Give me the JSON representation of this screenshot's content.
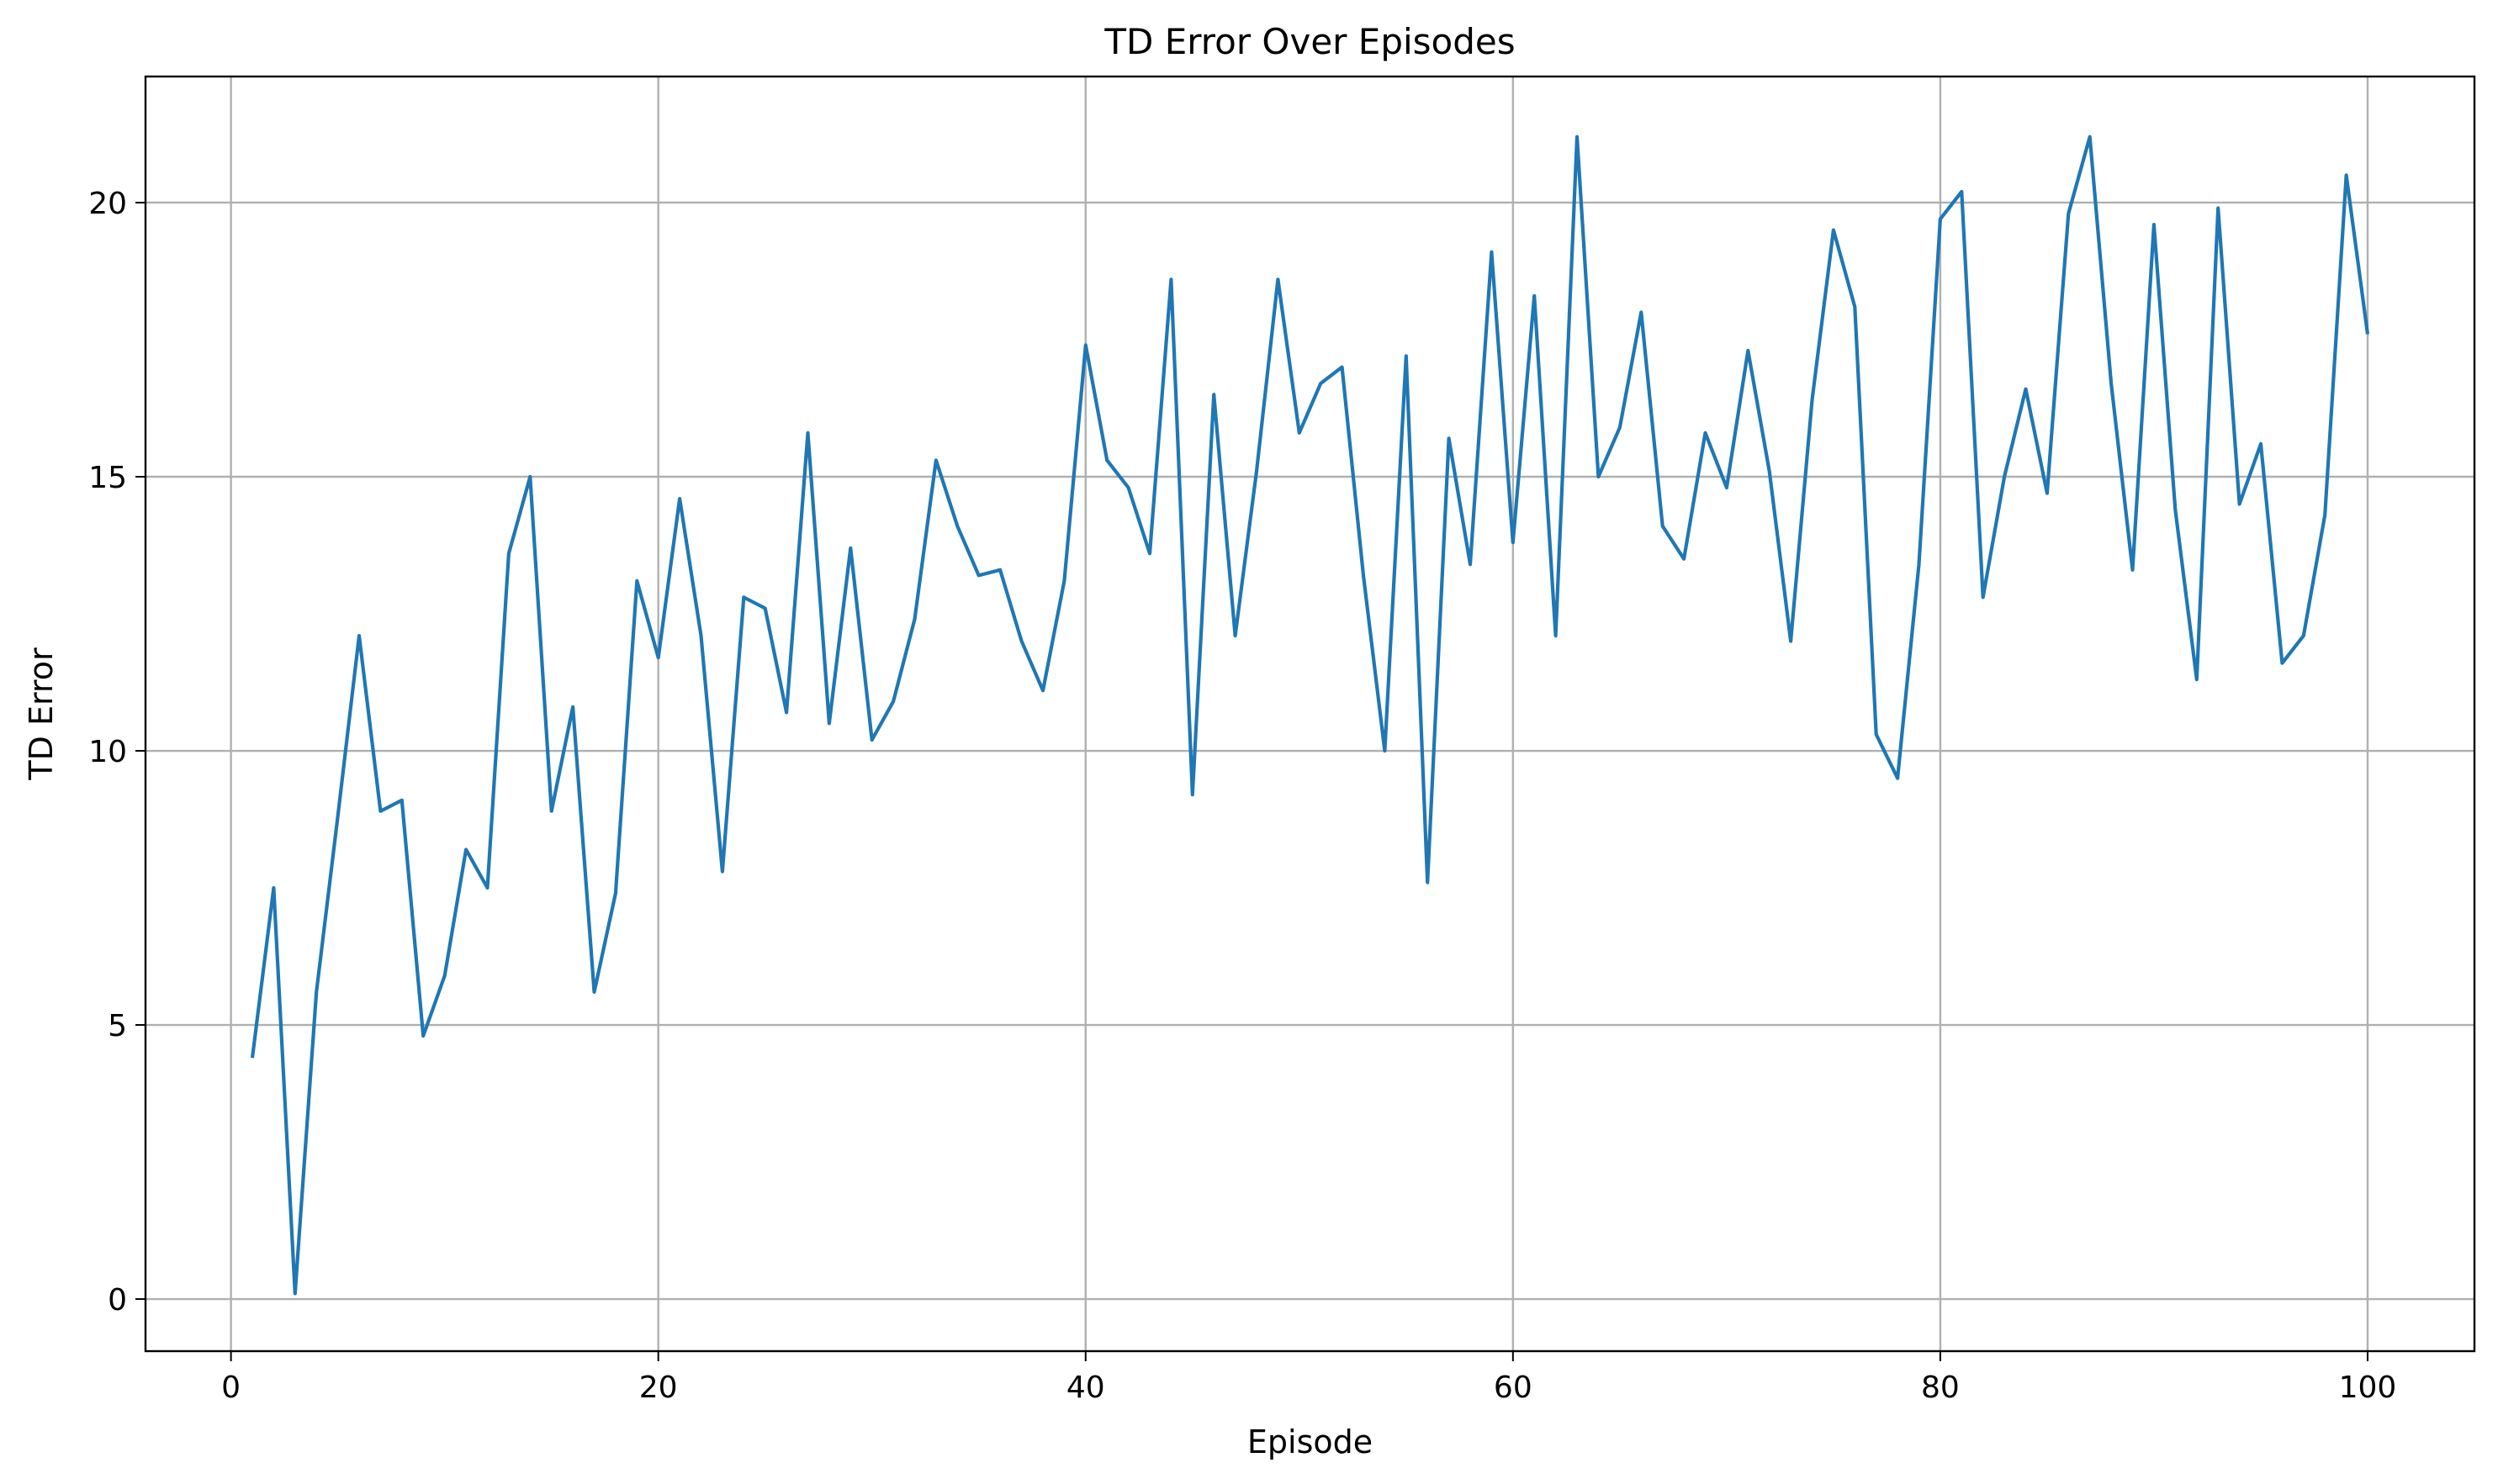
{
  "chart_data": {
    "type": "line",
    "title": "TD Error Over Episodes",
    "xlabel": "Episode",
    "ylabel": "TD Error",
    "xlim": [
      -4,
      105
    ],
    "ylim": [
      -0.95,
      22.3
    ],
    "grid": true,
    "x_ticks": [
      0,
      20,
      40,
      60,
      80,
      100
    ],
    "y_ticks": [
      0,
      5,
      10,
      15,
      20
    ],
    "colors": {
      "line": "#1f77b4",
      "grid": "#b0b0b0"
    },
    "series": [
      {
        "x": [
          1,
          2,
          3,
          4,
          5,
          6,
          7,
          8,
          9,
          10,
          11,
          12,
          13,
          14,
          15,
          16,
          17,
          18,
          19,
          20,
          21,
          22,
          23,
          24,
          25,
          26,
          27,
          28,
          29,
          30,
          31,
          32,
          33,
          34,
          35,
          36,
          37,
          38,
          39,
          40,
          41,
          42,
          43,
          44,
          45,
          46,
          47,
          48,
          49,
          50,
          51,
          52,
          53,
          54,
          55,
          56,
          57,
          58,
          59,
          60,
          61,
          62,
          63,
          64,
          65,
          66,
          67,
          68,
          69,
          70,
          71,
          72,
          73,
          74,
          75,
          76,
          77,
          78,
          79,
          80,
          81,
          82,
          83,
          84,
          85,
          86,
          87,
          88,
          89,
          90,
          91,
          92,
          93,
          94,
          95,
          96,
          97,
          98,
          99,
          100
        ],
        "values": [
          4.4,
          7.5,
          0.1,
          5.6,
          8.8,
          12.1,
          8.9,
          9.1,
          4.8,
          5.9,
          8.2,
          7.5,
          13.6,
          15.0,
          8.9,
          10.8,
          5.6,
          7.4,
          13.1,
          11.7,
          14.6,
          12.1,
          7.8,
          12.8,
          12.6,
          10.7,
          15.8,
          10.5,
          13.7,
          10.2,
          10.9,
          12.4,
          15.3,
          14.1,
          13.2,
          13.3,
          12.0,
          11.1,
          13.1,
          17.4,
          15.3,
          14.8,
          13.6,
          18.6,
          9.2,
          16.5,
          12.1,
          15.1,
          18.6,
          15.8,
          16.7,
          17.0,
          13.2,
          10.0,
          17.2,
          7.6,
          15.7,
          13.4,
          19.1,
          13.8,
          18.3,
          12.1,
          21.2,
          15.0,
          15.9,
          18.0,
          14.1,
          13.5,
          15.8,
          14.8,
          17.3,
          15.1,
          12.0,
          16.4,
          19.5,
          18.1,
          10.3,
          9.5,
          13.4,
          19.7,
          20.2,
          12.8,
          15.0,
          16.6,
          14.7,
          19.8,
          21.2,
          16.7,
          13.3,
          19.6,
          14.4,
          11.3,
          19.9,
          14.5,
          15.6,
          11.6,
          12.1,
          14.3,
          20.5,
          17.6
        ]
      }
    ]
  }
}
